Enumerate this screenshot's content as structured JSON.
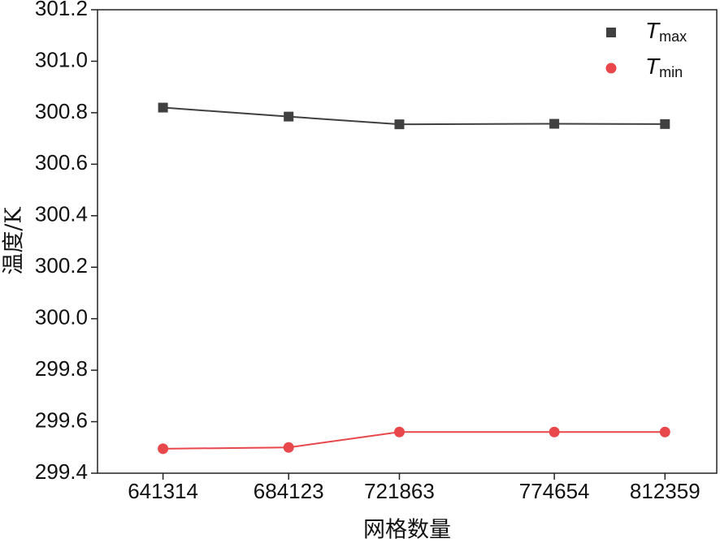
{
  "chart_data": {
    "type": "line",
    "xlabel": "网格数量",
    "ylabel": "温度/K",
    "x": [
      641314,
      684123,
      721863,
      774654,
      812359
    ],
    "series": [
      {
        "name": "Tmax",
        "color": "#404040",
        "marker": "square",
        "values": [
          300.82,
          300.785,
          300.755,
          300.757,
          300.756
        ]
      },
      {
        "name": "Tmin",
        "color": "#e8474b",
        "marker": "circle",
        "values": [
          299.495,
          299.5,
          299.56,
          299.56,
          299.56
        ]
      }
    ],
    "xlim": [
      619000,
      830000
    ],
    "xticks": [
      641314,
      684123,
      721863,
      774654,
      812359
    ],
    "ylim": [
      299.4,
      301.2
    ],
    "yticks": [
      299.4,
      299.6,
      299.8,
      {
        "value": 300,
        "label": "300.0"
      },
      300.2,
      300.4,
      300.6,
      300.8,
      {
        "value": 301,
        "label": "301.0"
      },
      301.2
    ],
    "legend": "upper right",
    "grid": false
  }
}
